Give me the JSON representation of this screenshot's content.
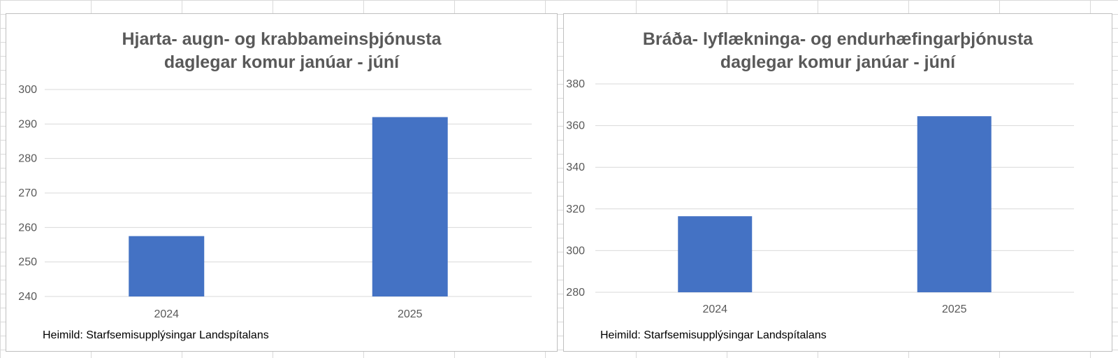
{
  "chart_data": [
    {
      "type": "bar",
      "title_lines": [
        "Hjarta- augn- og krabbameinsþjónusta",
        "daglegar komur janúar - júní"
      ],
      "categories": [
        "2024",
        "2025"
      ],
      "values": [
        257.5,
        292
      ],
      "ylim": [
        240,
        300
      ],
      "yticks": [
        "240",
        "250",
        "260",
        "270",
        "280",
        "290",
        "300"
      ],
      "grid": true,
      "bar_color": "#4472c4",
      "source": "Heimild: Starfsemisupplýsingar Landspítalans"
    },
    {
      "type": "bar",
      "title_lines": [
        "Bráða- lyflækninga- og endurhæfingarþjónusta",
        "daglegar komur janúar - júní"
      ],
      "categories": [
        "2024",
        "2025"
      ],
      "values": [
        316.5,
        364.5
      ],
      "ylim": [
        280,
        380
      ],
      "yticks": [
        "280",
        "300",
        "320",
        "340",
        "360",
        "380"
      ],
      "grid": true,
      "bar_color": "#4472c4",
      "source": "Heimild: Starfsemisupplýsingar Landspítalans"
    }
  ]
}
